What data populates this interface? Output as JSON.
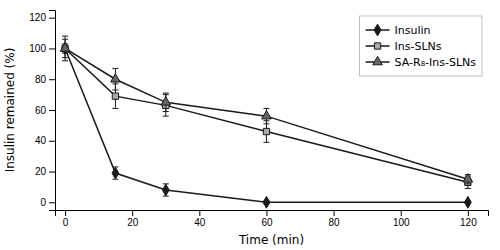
{
  "chart_data": {
    "type": "line",
    "x": [
      0,
      15,
      30,
      60,
      120
    ],
    "xlabel": "Time (min)",
    "ylabel": "Insulin remained (%)",
    "xlim": [
      -3,
      126
    ],
    "xticks": [
      0,
      20,
      40,
      60,
      80,
      100,
      120
    ],
    "ylim": [
      -5,
      125
    ],
    "yticks": [
      0,
      20,
      40,
      60,
      80,
      100,
      120
    ],
    "color": "#1a1a1a",
    "grid": false,
    "legend": "upper right",
    "series": [
      {
        "name": "Insulin",
        "values": [
          100,
          19,
          8,
          0,
          0
        ],
        "errors": [
          3,
          4,
          4,
          1,
          0.5
        ],
        "marker": "diamond",
        "color": "#1a1a1a"
      },
      {
        "name": "Ins-SLNs",
        "values": [
          100,
          69,
          63,
          46,
          13
        ],
        "errors": [
          6,
          8,
          7,
          7,
          4
        ],
        "marker": "square",
        "color": "#aaaaaa"
      },
      {
        "name": "SA-R₈-Ins-SLNs",
        "values": [
          100,
          80,
          65,
          56,
          15
        ],
        "errors": [
          8,
          7,
          6,
          5,
          3
        ],
        "marker": "triangle",
        "color": "#666666"
      }
    ]
  }
}
